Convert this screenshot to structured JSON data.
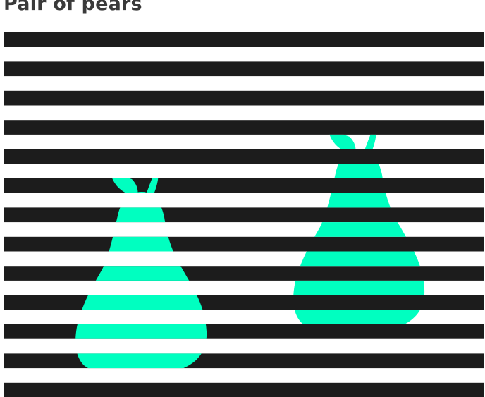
{
  "page": {
    "title": "Pair of pears"
  },
  "illusion": {
    "stripe_colors": [
      "#1c1c1c",
      "#ffffff"
    ],
    "pear_color": "#00ffc0",
    "pear_count": 2
  }
}
